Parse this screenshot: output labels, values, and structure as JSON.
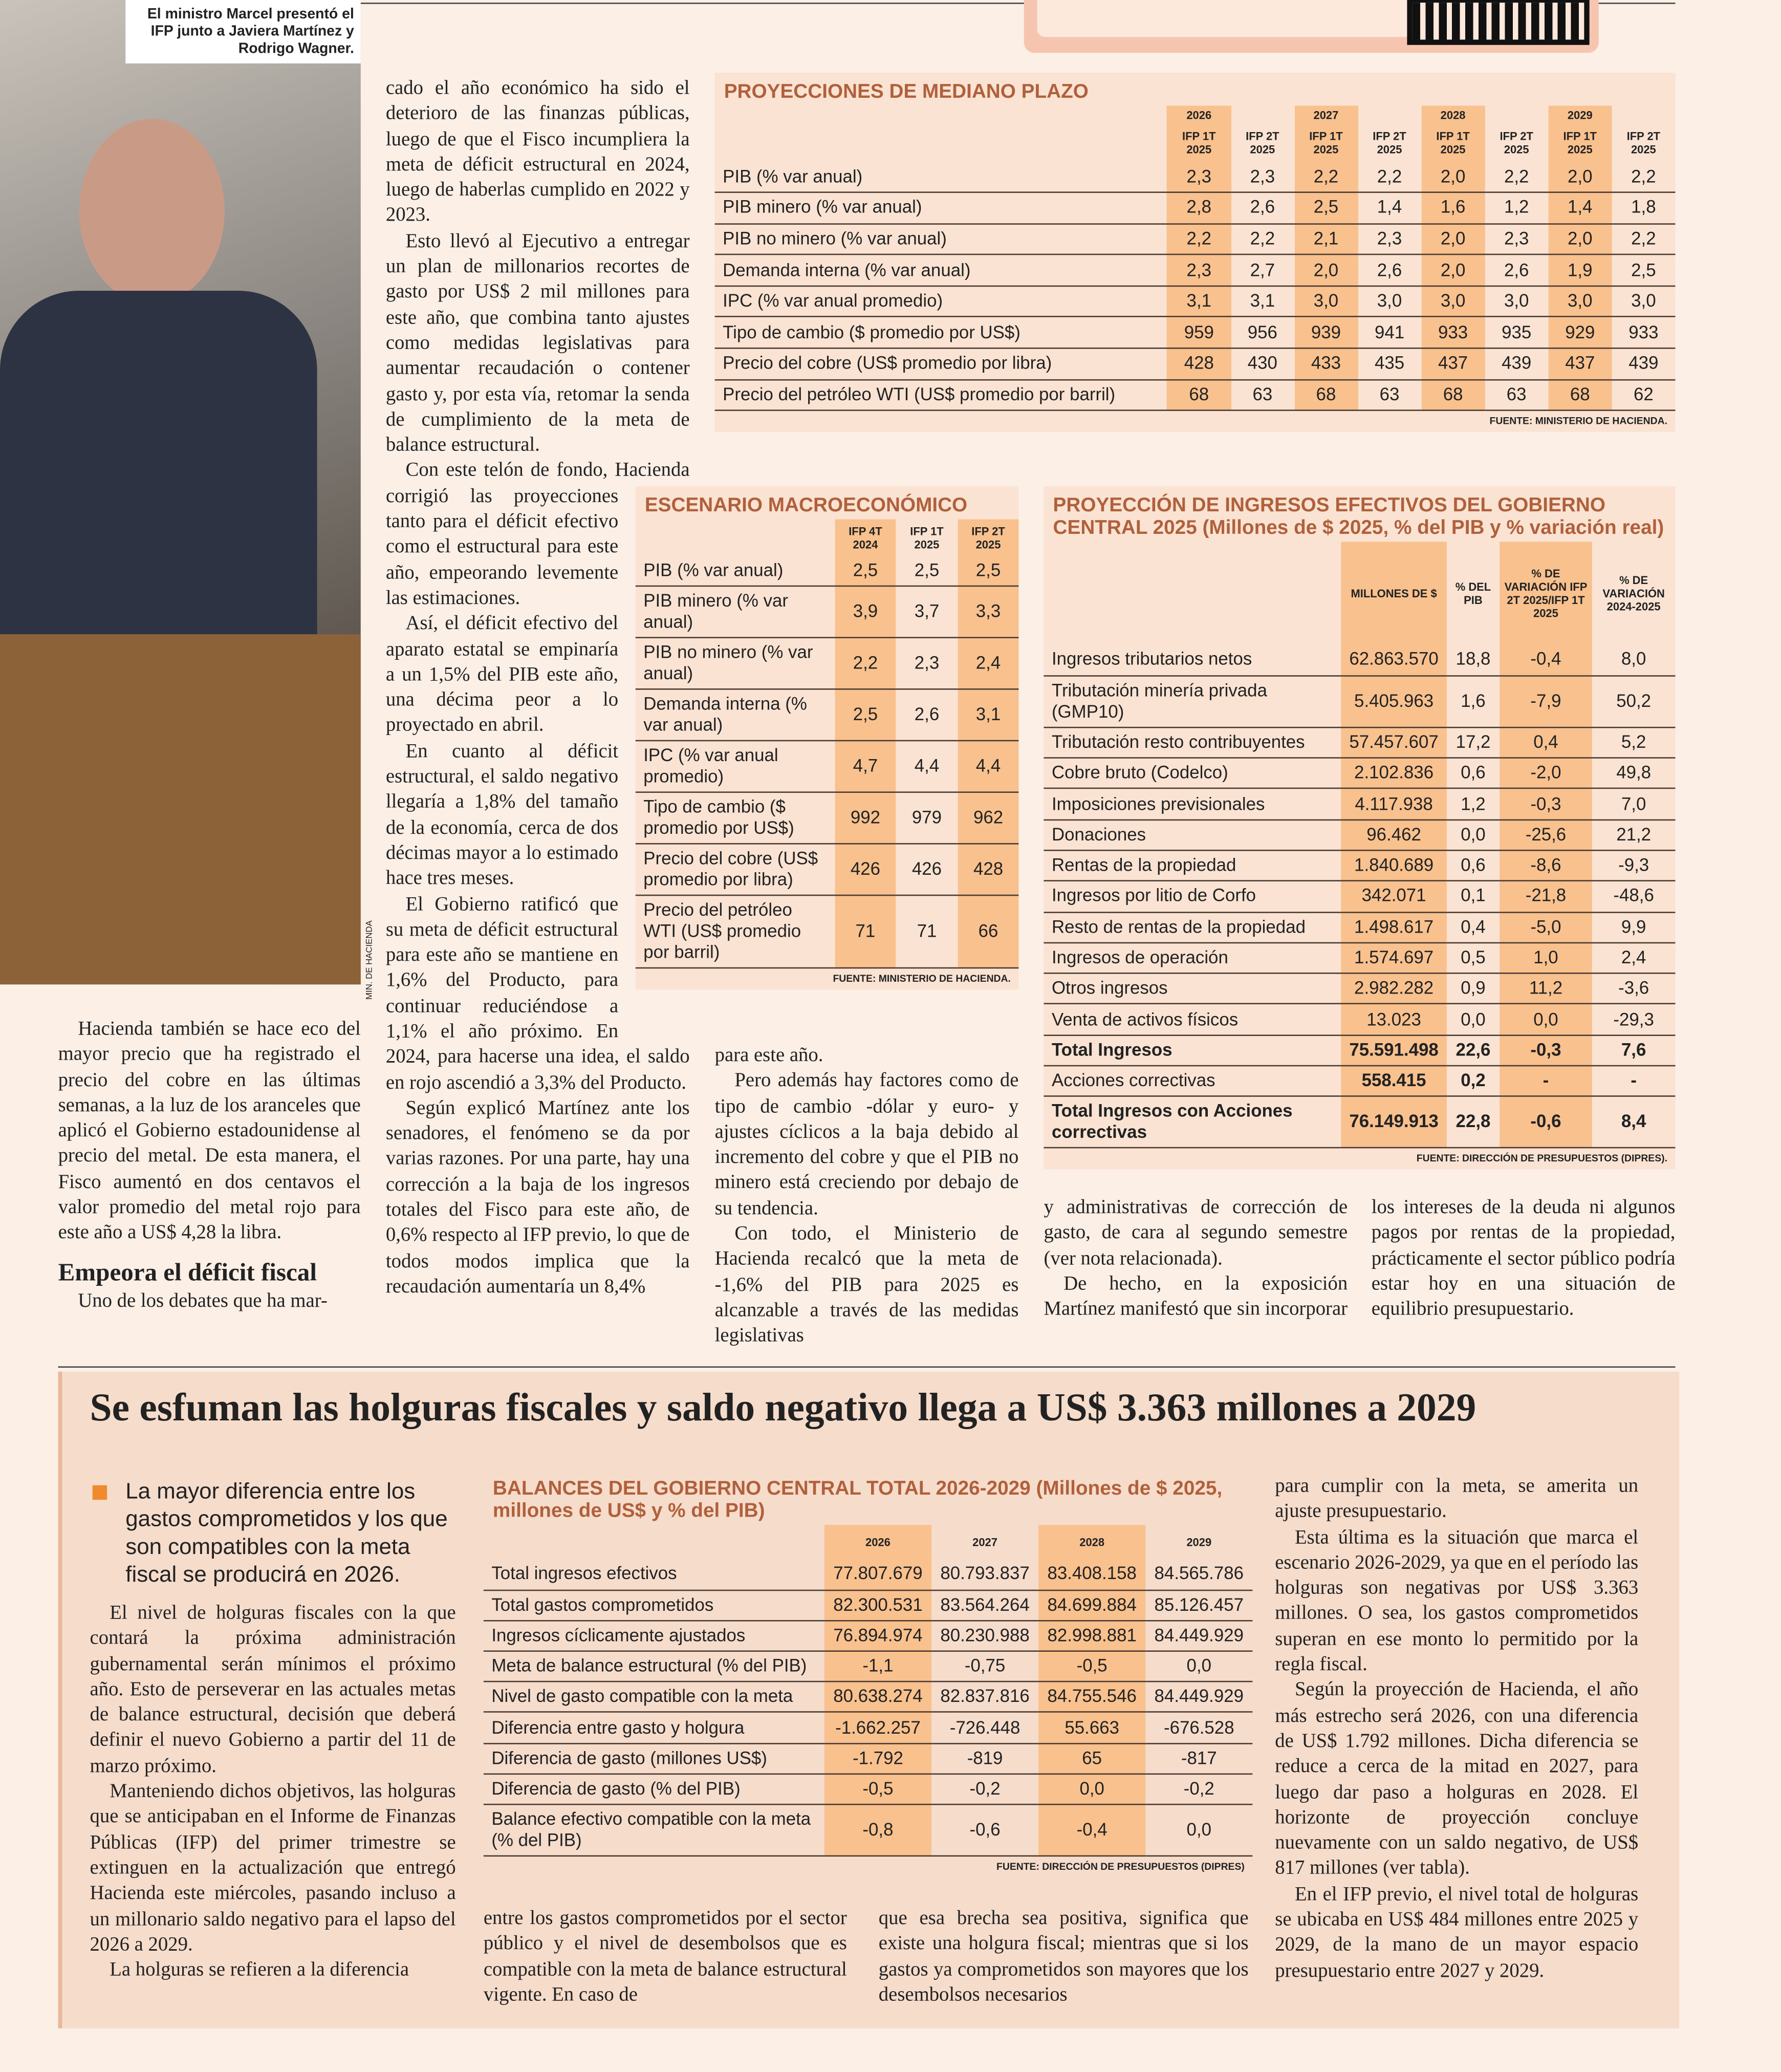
{
  "photo": {
    "caption": "El ministro Marcel presentó el IFP junto a Javiera Martínez y Rodrigo Wagner.",
    "credit": "MIN. DE HACIENDA"
  },
  "article": {
    "col1": [
      "Hacienda también se hace eco del mayor precio que ha registrado el precio del cobre en las últimas semanas, a la luz de los aranceles que aplicó el Gobierno estadounidense al precio del metal. De esta manera, el Fisco aumentó en dos centavos el valor promedio del metal rojo para este año a US$ 4,28 la libra."
    ],
    "subhead": "Empeora el déficit fiscal",
    "col1b": [
      "Uno de los debates que ha mar-"
    ],
    "col2": [
      "cado el año económico ha sido el deterioro de las finanzas públicas, luego de que el Fisco incumpliera la meta de déficit estructural en 2024, luego de haberlas cumplido en 2022 y 2023.",
      "Esto llevó al Ejecutivo a entregar un plan de millonarios recortes de gasto por US$ 2 mil millones para este año, que combina tanto ajustes como medidas legislativas para aumentar recaudación o contener gasto y, por esta vía, retomar la senda de cumplimiento de la meta de balance estructural.",
      "Con este telón de fondo, Hacienda corrigió las proyecciones tanto para el déficit efectivo como el estructural para este año, empeorando levemente las estimaciones.",
      "Así, el déficit efectivo del aparato estatal se empinaría a un 1,5% del PIB este año, una décima peor a lo proyectado en abril.",
      "En cuanto al déficit estructural, el saldo negativo llegaría a 1,8% del tamaño de la economía, cerca de dos décimas mayor a lo estimado hace tres meses.",
      "El Gobierno ratificó que su meta de déficit estructural para este año se mantiene en 1,6% del Producto, para continuar reduciéndose a 1,1% el año próximo. En 2024, para hacerse una idea, el saldo en rojo ascendió a 3,3% del Producto.",
      "Según explicó Martínez ante los senadores, el fenómeno se da por varias razones. Por una parte, hay una corrección a la baja de los ingresos totales del Fisco para este año, de 0,6% respecto al IFP previo, lo que de todos modos implica que la recaudación aumentaría un 8,4%"
    ],
    "col3": [
      "para este año.",
      "Pero además hay factores como de tipo de cambio -dólar y euro- y ajustes cíclicos a la baja debido al incremento del cobre y que el PIB no minero está creciendo por debajo de su tendencia.",
      "Con todo, el Ministerio de Hacienda recalcó que la meta de -1,6% del PIB para 2025 es alcanzable a través de las medidas legislativas"
    ],
    "col4": [
      "y administrativas de corrección de gasto, de cara al segundo semestre (ver nota relacionada).",
      "De hecho, en la exposición Martínez manifestó que sin incorporar"
    ],
    "col5": [
      "los intereses de la deuda ni algunos pagos por rentas de la propiedad, prácticamente el sector público podría estar hoy en una situación de equilibrio presupuestario."
    ]
  },
  "tables": {
    "mediano_plazo": {
      "title": "PROYECCIONES DE MEDIANO PLAZO",
      "year_groups": [
        "2026",
        "2027",
        "2028",
        "2029"
      ],
      "columns": [
        "IFP 1T 2025",
        "IFP 2T 2025",
        "IFP 1T 2025",
        "IFP 2T 2025",
        "IFP 1T 2025",
        "IFP 2T 2025",
        "IFP 1T 2025",
        "IFP 2T 2025"
      ],
      "rows": [
        {
          "label": "PIB (% var anual)",
          "values": [
            "2,3",
            "2,3",
            "2,2",
            "2,2",
            "2,0",
            "2,2",
            "2,0",
            "2,2"
          ]
        },
        {
          "label": "PIB minero (% var anual)",
          "values": [
            "2,8",
            "2,6",
            "2,5",
            "1,4",
            "1,6",
            "1,2",
            "1,4",
            "1,8"
          ]
        },
        {
          "label": "PIB no minero (% var anual)",
          "values": [
            "2,2",
            "2,2",
            "2,1",
            "2,3",
            "2,0",
            "2,3",
            "2,0",
            "2,2"
          ]
        },
        {
          "label": "Demanda interna (% var anual)",
          "values": [
            "2,3",
            "2,7",
            "2,0",
            "2,6",
            "2,0",
            "2,6",
            "1,9",
            "2,5"
          ]
        },
        {
          "label": "IPC (% var anual promedio)",
          "values": [
            "3,1",
            "3,1",
            "3,0",
            "3,0",
            "3,0",
            "3,0",
            "3,0",
            "3,0"
          ]
        },
        {
          "label": "Tipo de cambio ($ promedio por US$)",
          "values": [
            "959",
            "956",
            "939",
            "941",
            "933",
            "935",
            "929",
            "933"
          ]
        },
        {
          "label": "Precio del cobre (US$ promedio por libra)",
          "values": [
            "428",
            "430",
            "433",
            "435",
            "437",
            "439",
            "437",
            "439"
          ]
        },
        {
          "label": "Precio del petróleo WTI (US$ promedio por barril)",
          "values": [
            "68",
            "63",
            "68",
            "63",
            "68",
            "63",
            "68",
            "62"
          ]
        }
      ],
      "source": "FUENTE: MINISTERIO DE HACIENDA."
    },
    "escenario": {
      "title": "ESCENARIO MACROECONÓMICO",
      "columns": [
        "IFP 4T 2024",
        "IFP 1T 2025",
        "IFP 2T 2025"
      ],
      "rows": [
        {
          "label": "PIB (% var anual)",
          "values": [
            "2,5",
            "2,5",
            "2,5"
          ]
        },
        {
          "label": "PIB minero (% var anual)",
          "values": [
            "3,9",
            "3,7",
            "3,3"
          ]
        },
        {
          "label": "PIB no minero (% var anual)",
          "values": [
            "2,2",
            "2,3",
            "2,4"
          ]
        },
        {
          "label": "Demanda interna (% var anual)",
          "values": [
            "2,5",
            "2,6",
            "3,1"
          ]
        },
        {
          "label": "IPC (% var anual promedio)",
          "values": [
            "4,7",
            "4,4",
            "4,4"
          ]
        },
        {
          "label": "Tipo de cambio ($ promedio por US$)",
          "values": [
            "992",
            "979",
            "962"
          ]
        },
        {
          "label": "Precio del cobre (US$ promedio por libra)",
          "values": [
            "426",
            "426",
            "428"
          ]
        },
        {
          "label": "Precio del petróleo WTI (US$ promedio por barril)",
          "values": [
            "71",
            "71",
            "66"
          ]
        }
      ],
      "source": "FUENTE: MINISTERIO DE HACIENDA."
    },
    "ingresos": {
      "title": "PROYECCIÓN DE INGRESOS EFECTIVOS DEL GOBIERNO CENTRAL 2025 (Millones de $ 2025, % del PIB y % variación real)",
      "columns": [
        "MILLONES DE $",
        "% DEL PIB",
        "% DE VARIACIÓN IFP 2T 2025/IFP 1T 2025",
        "% DE VARIACIÓN 2024-2025"
      ],
      "rows": [
        {
          "label": "Ingresos tributarios netos",
          "values": [
            "62.863.570",
            "18,8",
            "-0,4",
            "8,0"
          ]
        },
        {
          "label": "Tributación minería privada (GMP10)",
          "values": [
            "5.405.963",
            "1,6",
            "-7,9",
            "50,2"
          ]
        },
        {
          "label": "Tributación resto contribuyentes",
          "values": [
            "57.457.607",
            "17,2",
            "0,4",
            "5,2"
          ]
        },
        {
          "label": "Cobre bruto (Codelco)",
          "values": [
            "2.102.836",
            "0,6",
            "-2,0",
            "49,8"
          ]
        },
        {
          "label": "Imposiciones previsionales",
          "values": [
            "4.117.938",
            "1,2",
            "-0,3",
            "7,0"
          ]
        },
        {
          "label": "Donaciones",
          "values": [
            "96.462",
            "0,0",
            "-25,6",
            "21,2"
          ]
        },
        {
          "label": "Rentas de la propiedad",
          "values": [
            "1.840.689",
            "0,6",
            "-8,6",
            "-9,3"
          ]
        },
        {
          "label": "Ingresos por litio de Corfo",
          "values": [
            "342.071",
            "0,1",
            "-21,8",
            "-48,6"
          ]
        },
        {
          "label": "Resto de rentas de la propiedad",
          "values": [
            "1.498.617",
            "0,4",
            "-5,0",
            "9,9"
          ]
        },
        {
          "label": "Ingresos de operación",
          "values": [
            "1.574.697",
            "0,5",
            "1,0",
            "2,4"
          ]
        },
        {
          "label": "Otros ingresos",
          "values": [
            "2.982.282",
            "0,9",
            "11,2",
            "-3,6"
          ]
        },
        {
          "label": "Venta de activos físicos",
          "values": [
            "13.023",
            "0,0",
            "0,0",
            "-29,3"
          ]
        },
        {
          "label": "Total Ingresos",
          "values": [
            "75.591.498",
            "22,6",
            "-0,3",
            "7,6"
          ]
        },
        {
          "label": "Acciones correctivas",
          "values": [
            "558.415",
            "0,2",
            "-",
            "-"
          ]
        },
        {
          "label": "Total Ingresos con Acciones correctivas",
          "values": [
            "76.149.913",
            "22,8",
            "-0,6",
            "8,4"
          ]
        }
      ],
      "source": "FUENTE: DIRECCIÓN DE PRESUPUESTOS (DIPRES)."
    },
    "balances": {
      "title": "BALANCES DEL GOBIERNO CENTRAL TOTAL 2026-2029 (Millones de $ 2025, millones de US$ y % del PIB)",
      "columns": [
        "2026",
        "2027",
        "2028",
        "2029"
      ],
      "rows": [
        {
          "label": "Total ingresos efectivos",
          "values": [
            "77.807.679",
            "80.793.837",
            "83.408.158",
            "84.565.786"
          ]
        },
        {
          "label": "Total gastos comprometidos",
          "values": [
            "82.300.531",
            "83.564.264",
            "84.699.884",
            "85.126.457"
          ]
        },
        {
          "label": "Ingresos cíclicamente ajustados",
          "values": [
            "76.894.974",
            "80.230.988",
            "82.998.881",
            "84.449.929"
          ]
        },
        {
          "label": "Meta de balance estructural (% del PIB)",
          "values": [
            "-1,1",
            "-0,75",
            "-0,5",
            "0,0"
          ]
        },
        {
          "label": "Nivel de gasto compatible con la meta",
          "values": [
            "80.638.274",
            "82.837.816",
            "84.755.546",
            "84.449.929"
          ]
        },
        {
          "label": "Diferencia entre gasto y holgura",
          "values": [
            "-1.662.257",
            "-726.448",
            "55.663",
            "-676.528"
          ]
        },
        {
          "label": "Diferencia de gasto (millones US$)",
          "values": [
            "-1.792",
            "-819",
            "65",
            "-817"
          ]
        },
        {
          "label": "Diferencia de gasto (% del PIB)",
          "values": [
            "-0,5",
            "-0,2",
            "0,0",
            "-0,2"
          ]
        },
        {
          "label": "Balance efectivo compatible con la meta (% del PIB)",
          "values": [
            "-0,8",
            "-0,6",
            "-0,4",
            "0,0"
          ]
        }
      ],
      "source": "FUENTE: DIRECCIÓN DE PRESUPUESTOS (DIPRES)"
    }
  },
  "box": {
    "title": "Se esfuman las holguras fiscales y saldo negativo llega a US$ 3.363 millones a 2029",
    "lead": "La mayor diferencia entre los gastos comprometidos y los que son compatibles con la meta fiscal se producirá en 2026.",
    "col1": [
      "El nivel de holguras fiscales con la que contará la próxima administración gubernamental serán mínimos el próximo año. Esto de perseverar en las actuales metas de balance estructural, decisión que deberá definir el nuevo Gobierno a partir del 11 de marzo próximo.",
      "Manteniendo dichos objetivos, las holguras que se anticipaban en el Informe de Finanzas Públicas (IFP) del primer trimestre se extinguen en la actualización que entregó Hacienda este miércoles, pasando incluso a un millonario saldo negativo para el lapso del 2026 a 2029.",
      "La holguras se refieren a la diferencia"
    ],
    "col2": [
      "entre los gastos comprometidos por el sector público y el nivel de desembolsos que es compatible con la meta de balance estructural vigente. En caso de"
    ],
    "col3": [
      "que esa brecha sea positiva, significa que existe una holgura fiscal; mientras que si los gastos ya comprometidos son mayores que los desembolsos necesarios"
    ],
    "col4": [
      "para cumplir con la meta, se amerita un ajuste presupuestario.",
      "Esta última es la situación que marca el escenario 2026-2029, ya que en el período las holguras son negativas por US$ 3.363 millones. O sea, los gastos comprometidos superan en ese monto lo permitido por la regla fiscal.",
      "Según la proyección de Hacienda, el año más estrecho será 2026, con una diferencia de US$ 1.792 millones. Dicha diferencia se reduce a cerca de la mitad en 2027, para luego dar paso a holguras en 2028. El horizonte de proyección concluye nuevamente con un saldo negativo, de US$ 817 millones (ver tabla).",
      "En el IFP previo, el nivel total de holguras se ubicaba en US$ 484 millones entre 2025 y 2029, de la mano de un mayor espacio presupuestario entre 2027 y 2029."
    ]
  }
}
